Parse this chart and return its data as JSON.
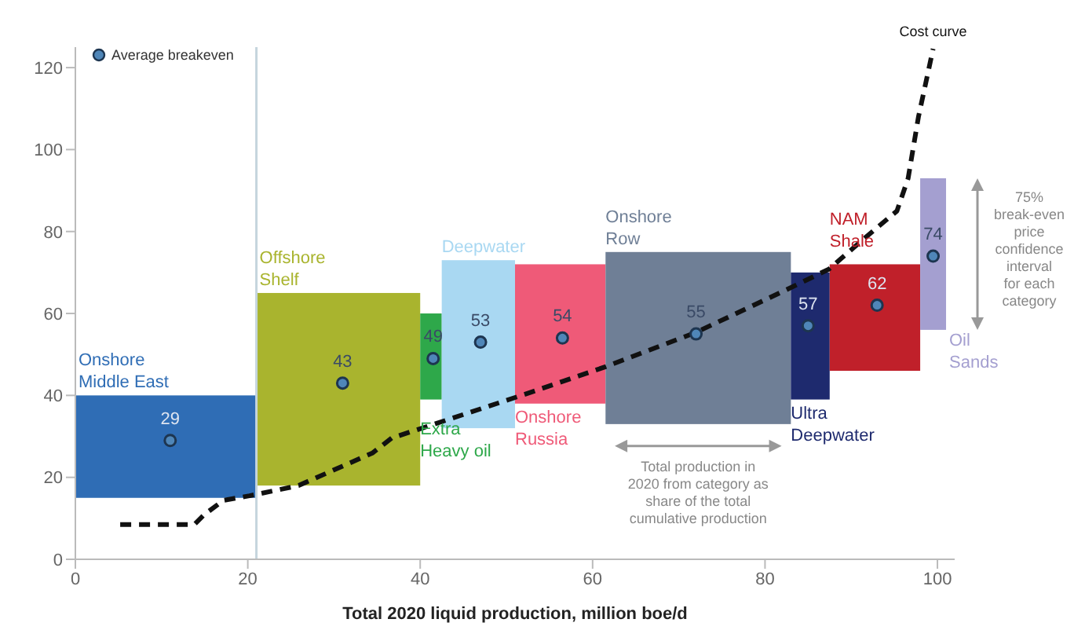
{
  "chart_data": {
    "type": "bar",
    "xlabel": "Total 2020 liquid production, million boe/d",
    "xlim": [
      0,
      102
    ],
    "xticks": [
      0,
      20,
      40,
      60,
      80,
      100
    ],
    "ylim": [
      0,
      125
    ],
    "yticks": [
      0,
      20,
      40,
      60,
      80,
      100,
      120
    ],
    "grid": false,
    "legend": "top left",
    "series": [
      {
        "name": "Onshore Middle East",
        "x": [
          10.5
        ],
        "base": [
          15
        ],
        "values": [
          25
        ],
        "color": "#2f6db5"
      },
      {
        "name": "Offshore Shelf",
        "x": [
          30.5
        ],
        "base": [
          18
        ],
        "values": [
          47
        ],
        "color": "#a9b42e"
      },
      {
        "name": "Extra Heavy oil",
        "x": [
          41.25
        ],
        "base": [
          39
        ],
        "values": [
          21
        ],
        "color": "#2ea84a"
      },
      {
        "name": "Deepwater",
        "x": [
          46.75
        ],
        "base": [
          32
        ],
        "values": [
          41
        ],
        "color": "#a9d8f2"
      },
      {
        "name": "Onshore Russia",
        "x": [
          56.25
        ],
        "base": [
          38
        ],
        "values": [
          34
        ],
        "color": "#ef5a78"
      },
      {
        "name": "Onshore Row",
        "x": [
          72.25
        ],
        "base": [
          33
        ],
        "values": [
          42
        ],
        "color": "#6f7f96"
      },
      {
        "name": "Ultra Deepwater",
        "x": [
          85.25
        ],
        "base": [
          39
        ],
        "values": [
          31
        ],
        "color": "#1e2a6e"
      },
      {
        "name": "NAM Shale",
        "x": [
          92.75
        ],
        "base": [
          46
        ],
        "values": [
          26
        ],
        "color": "#c0202a"
      },
      {
        "name": "Oil Sands",
        "x": [
          99.5
        ],
        "base": [
          56
        ],
        "values": [
          37
        ],
        "color": "#a49fd0"
      },
      {
        "type": "scatter",
        "name": "Average breakeven",
        "x": [
          11,
          31,
          41.5,
          47,
          56.5,
          72,
          85,
          93,
          99.5
        ],
        "values": [
          29,
          43,
          49,
          53,
          54,
          55,
          57,
          62,
          74
        ],
        "color": "#4f86b8",
        "data_labels": true
      },
      {
        "type": "line",
        "name": "Cost curve",
        "color": "#111111",
        "line_style": "dashed",
        "marker": "none",
        "x": [
          5.2,
          13.8,
          15,
          17.2,
          20.2,
          25.9,
          34.5,
          36.7,
          40.2,
          52.9,
          61.5,
          71.9,
          82.2,
          87.4,
          91.9,
          95.3,
          96.6,
          97.8,
          99.5
        ],
        "values": [
          8.5,
          8.5,
          11,
          14.4,
          15.5,
          18,
          26,
          29.6,
          32,
          40.8,
          47,
          55.3,
          65.5,
          70.8,
          79,
          85,
          93,
          108,
          124.6
        ]
      }
    ],
    "ref_lines": [
      {
        "axis": "x",
        "value": 21,
        "color": "#c5d5dd"
      }
    ],
    "annotations": [
      "Total production in 2020 from category as share of the total cumulative production",
      "75% break-even price confidence interval for each category"
    ]
  }
}
